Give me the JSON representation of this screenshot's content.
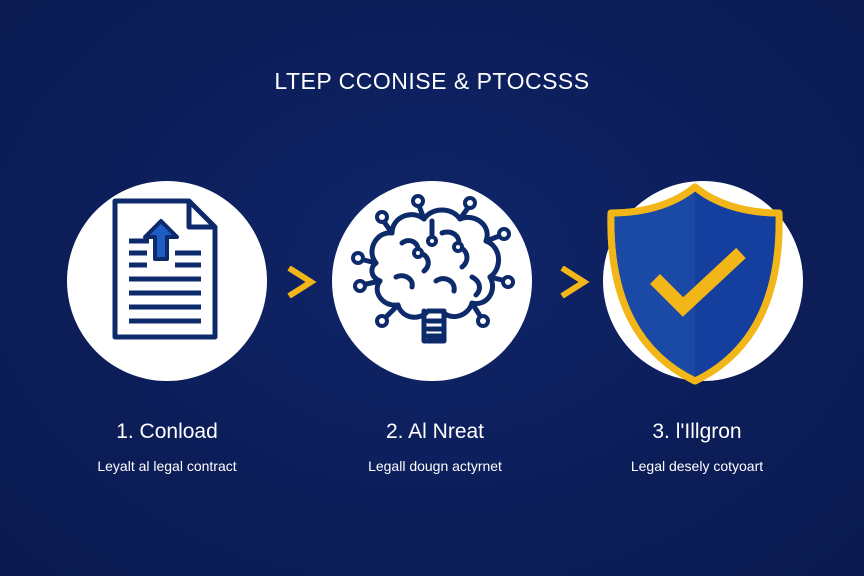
{
  "header": {
    "title": "LTEP CCONISE & PTOCSSS"
  },
  "colors": {
    "background": "#0d1f5c",
    "icon_navy": "#0d2a6b",
    "shield_blue": "#1a4aa6",
    "accent_gold": "#f2b619",
    "text": "#ffffff"
  },
  "steps": [
    {
      "title": "1. Conload",
      "description": "Leyalt al legal contract",
      "icon": "document-upload-icon"
    },
    {
      "title": "2. Al Nreat",
      "description": "Legall dougn actyrnet",
      "icon": "ai-brain-icon"
    },
    {
      "title": "3. l'Illgron",
      "description": "Legal desely cotyoart",
      "icon": "shield-check-icon"
    }
  ],
  "connectors": [
    {
      "icon": "chevron-right-icon"
    },
    {
      "icon": "chevron-right-icon"
    }
  ]
}
